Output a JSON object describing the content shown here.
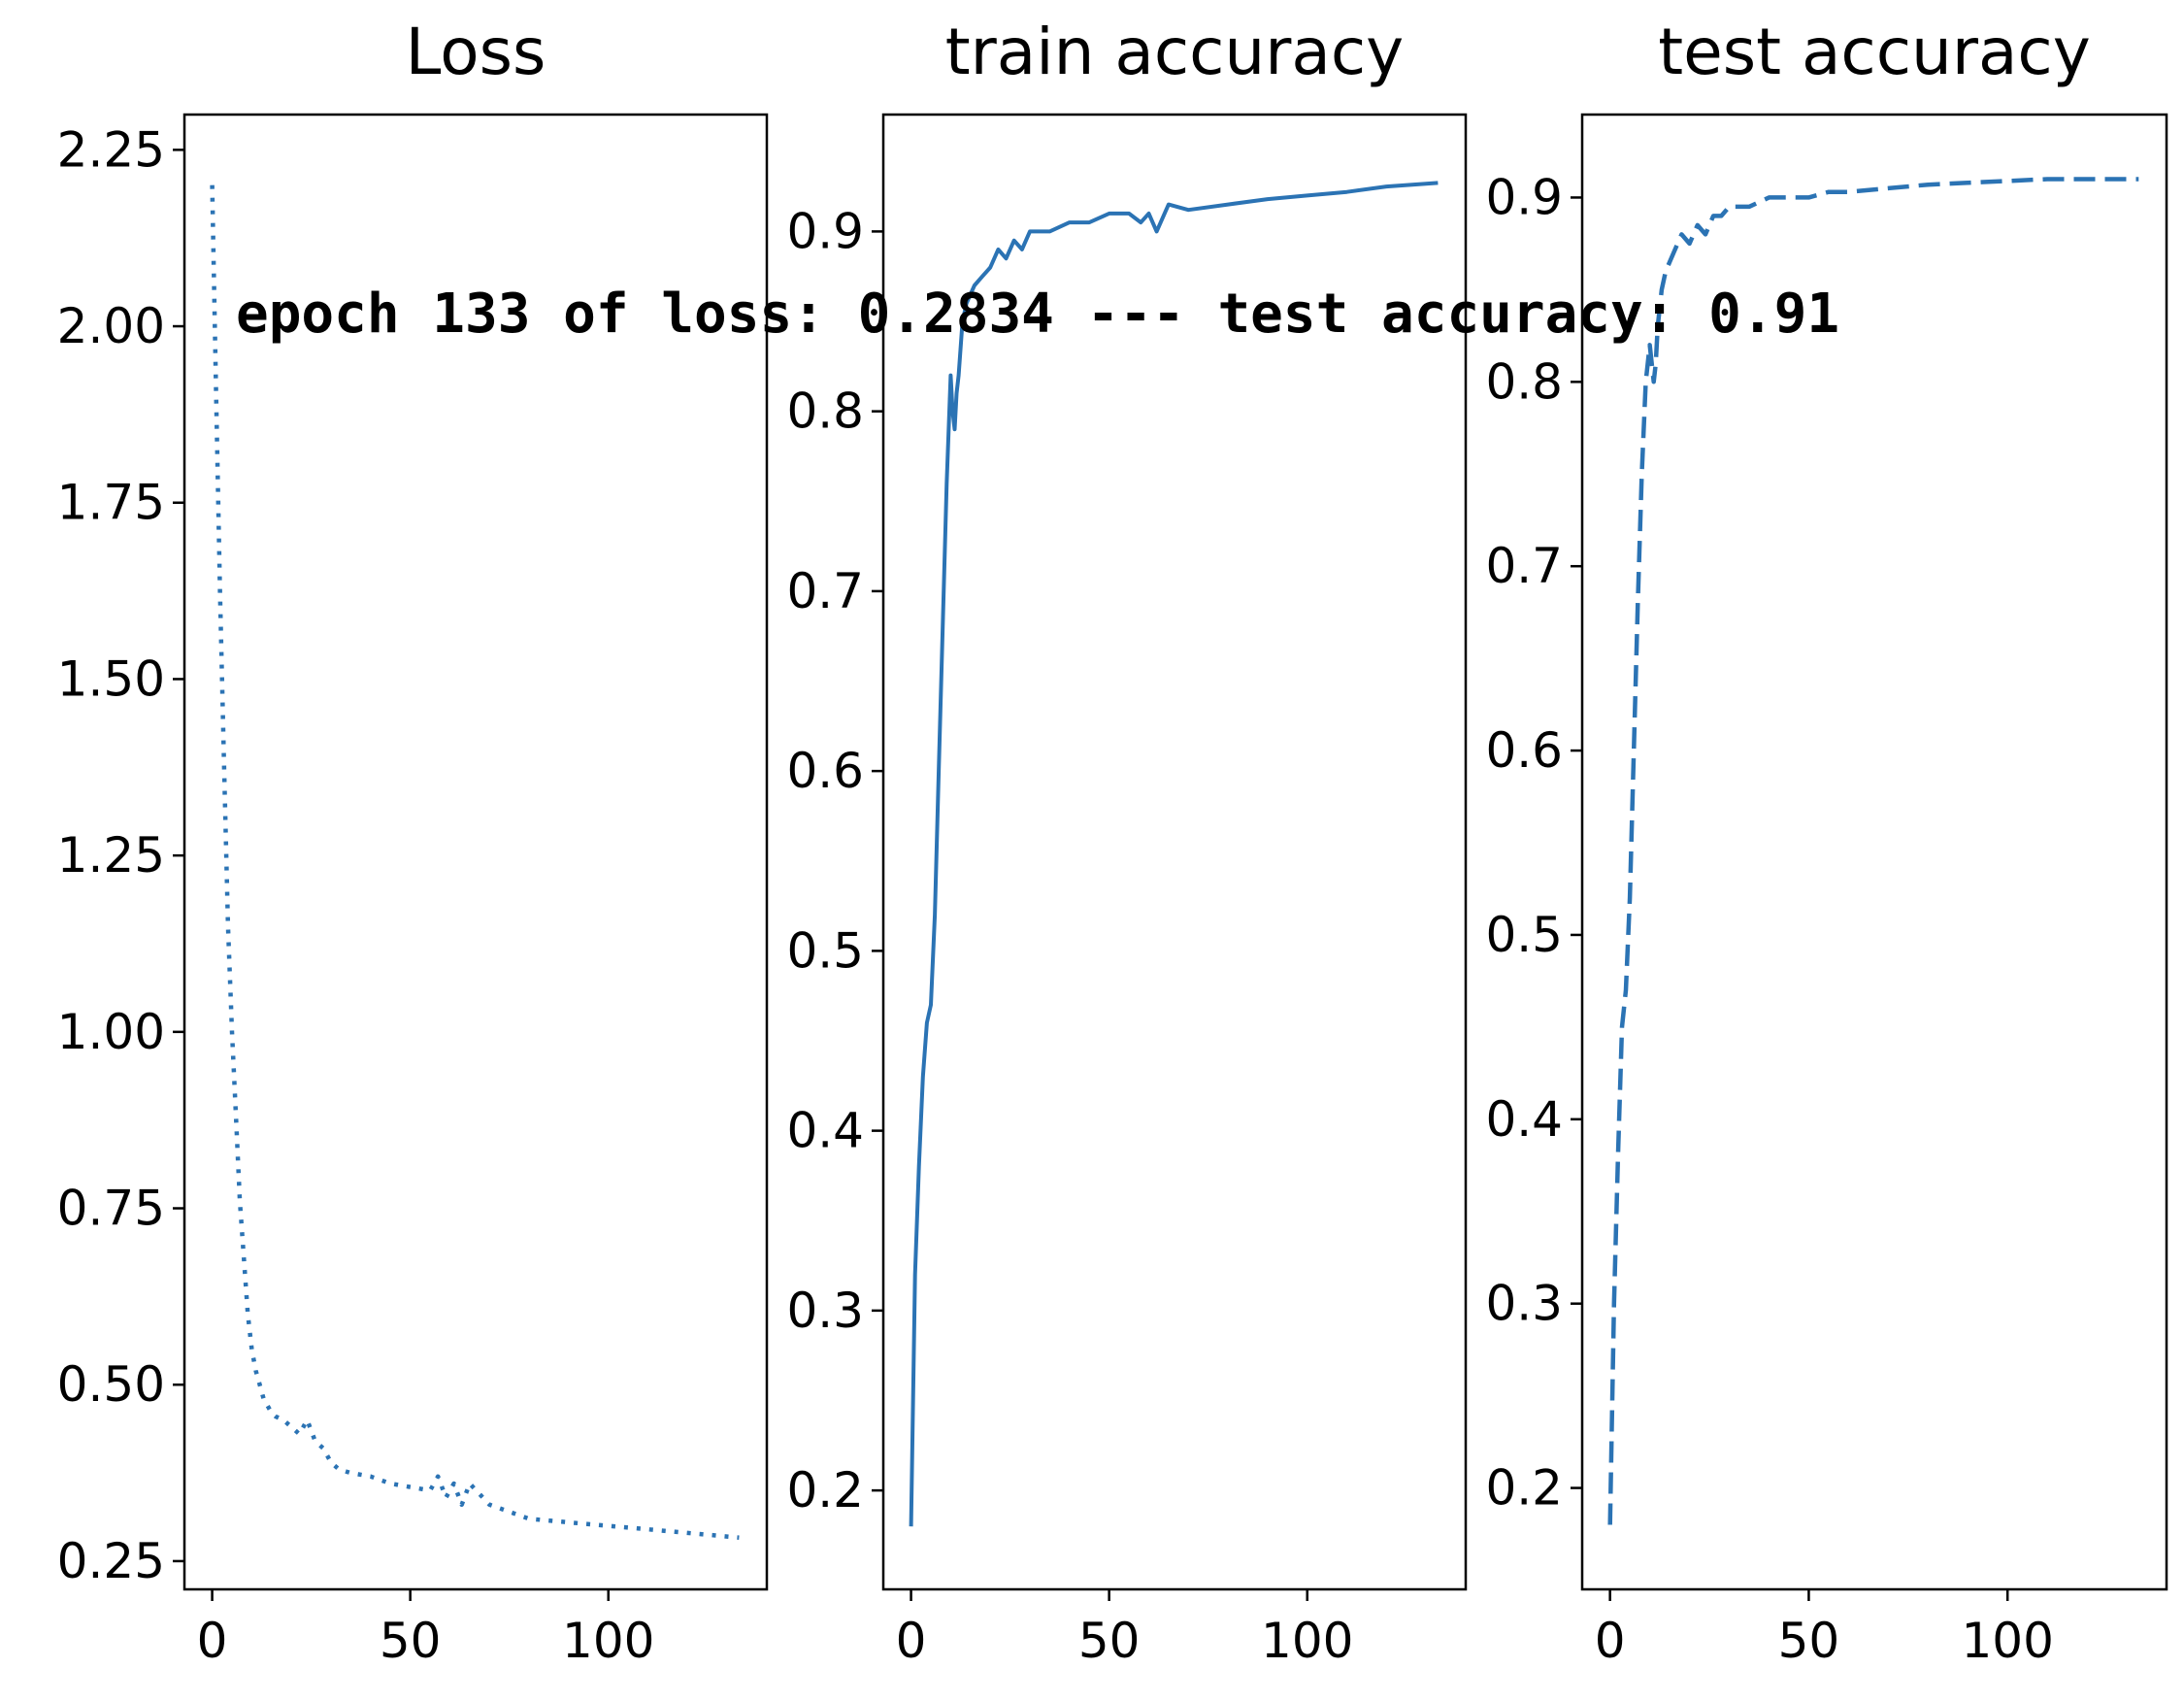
{
  "figure": {
    "annotation": "epoch 133 of loss: 0.2834 --- test accuracy: 0.91",
    "annotation_color": "#e8313b",
    "line_color": "#2b73b4"
  },
  "chart_data": [
    {
      "type": "line",
      "title": "Loss",
      "xlabel": "",
      "ylabel": "",
      "line_style": "dotted",
      "xlim": [
        -7,
        140
      ],
      "ylim": [
        0.21,
        2.3
      ],
      "xticks": [
        0,
        50,
        100
      ],
      "xtick_labels": [
        "0",
        "50",
        "100"
      ],
      "yticks": [
        0.25,
        0.5,
        0.75,
        1.0,
        1.25,
        1.5,
        1.75,
        2.0,
        2.25
      ],
      "ytick_labels": [
        "0.25",
        "0.50",
        "0.75",
        "1.00",
        "1.25",
        "1.50",
        "1.75",
        "2.00",
        "2.25"
      ],
      "grid": false,
      "series": [
        {
          "x": [
            0,
            1,
            2,
            3,
            4,
            5,
            6,
            7,
            8,
            9,
            10,
            11,
            12,
            13,
            14,
            15,
            16,
            18,
            20,
            22,
            24,
            26,
            28,
            30,
            32,
            35,
            40,
            45,
            50,
            55,
            57,
            59,
            61,
            63,
            65,
            70,
            80,
            90,
            100,
            110,
            120,
            133
          ],
          "y": [
            2.2,
            1.9,
            1.62,
            1.38,
            1.15,
            1.0,
            0.88,
            0.76,
            0.68,
            0.6,
            0.55,
            0.52,
            0.5,
            0.48,
            0.47,
            0.46,
            0.455,
            0.45,
            0.44,
            0.43,
            0.45,
            0.42,
            0.41,
            0.39,
            0.38,
            0.375,
            0.37,
            0.36,
            0.355,
            0.35,
            0.37,
            0.34,
            0.36,
            0.33,
            0.36,
            0.33,
            0.31,
            0.305,
            0.3,
            0.295,
            0.29,
            0.2834
          ]
        }
      ]
    },
    {
      "type": "line",
      "title": "train accuracy",
      "xlabel": "",
      "ylabel": "",
      "line_style": "solid",
      "xlim": [
        -7,
        140
      ],
      "ylim": [
        0.145,
        0.965
      ],
      "xticks": [
        0,
        50,
        100
      ],
      "xtick_labels": [
        "0",
        "50",
        "100"
      ],
      "yticks": [
        0.2,
        0.3,
        0.4,
        0.5,
        0.6,
        0.7,
        0.8,
        0.9
      ],
      "ytick_labels": [
        "0.2",
        "0.3",
        "0.4",
        "0.5",
        "0.6",
        "0.7",
        "0.8",
        "0.9"
      ],
      "grid": false,
      "series": [
        {
          "x": [
            0,
            1,
            2,
            3,
            4,
            5,
            6,
            7,
            8,
            9,
            10,
            10.5,
            11,
            11.5,
            12,
            13,
            14,
            15,
            16,
            18,
            20,
            22,
            24,
            26,
            28,
            30,
            35,
            40,
            45,
            50,
            55,
            58,
            60,
            62,
            65,
            70,
            80,
            90,
            100,
            110,
            120,
            133
          ],
          "y": [
            0.18,
            0.32,
            0.38,
            0.43,
            0.46,
            0.47,
            0.52,
            0.6,
            0.68,
            0.76,
            0.82,
            0.8,
            0.79,
            0.81,
            0.82,
            0.85,
            0.86,
            0.865,
            0.87,
            0.875,
            0.88,
            0.89,
            0.885,
            0.895,
            0.89,
            0.9,
            0.9,
            0.905,
            0.905,
            0.91,
            0.91,
            0.905,
            0.91,
            0.9,
            0.915,
            0.912,
            0.915,
            0.918,
            0.92,
            0.922,
            0.925,
            0.927
          ]
        }
      ]
    },
    {
      "type": "line",
      "title": "test accuracy",
      "xlabel": "",
      "ylabel": "",
      "line_style": "dashed",
      "xlim": [
        -7,
        140
      ],
      "ylim": [
        0.145,
        0.945
      ],
      "xticks": [
        0,
        50,
        100
      ],
      "xtick_labels": [
        "0",
        "50",
        "100"
      ],
      "yticks": [
        0.2,
        0.3,
        0.4,
        0.5,
        0.6,
        0.7,
        0.8,
        0.9
      ],
      "ytick_labels": [
        "0.2",
        "0.3",
        "0.4",
        "0.5",
        "0.6",
        "0.7",
        "0.8",
        "0.9"
      ],
      "grid": false,
      "series": [
        {
          "x": [
            0,
            1,
            2,
            3,
            4,
            5,
            6,
            7,
            8,
            9,
            10,
            11,
            11.5,
            12,
            13,
            14,
            15,
            16,
            18,
            20,
            22,
            24,
            26,
            28,
            30,
            35,
            40,
            45,
            50,
            55,
            60,
            70,
            80,
            90,
            100,
            110,
            120,
            133
          ],
          "y": [
            0.18,
            0.3,
            0.38,
            0.45,
            0.47,
            0.52,
            0.6,
            0.68,
            0.75,
            0.8,
            0.82,
            0.8,
            0.81,
            0.83,
            0.85,
            0.86,
            0.865,
            0.87,
            0.88,
            0.875,
            0.885,
            0.88,
            0.89,
            0.89,
            0.895,
            0.895,
            0.9,
            0.9,
            0.9,
            0.903,
            0.903,
            0.905,
            0.907,
            0.908,
            0.909,
            0.91,
            0.91,
            0.91
          ]
        }
      ]
    }
  ]
}
